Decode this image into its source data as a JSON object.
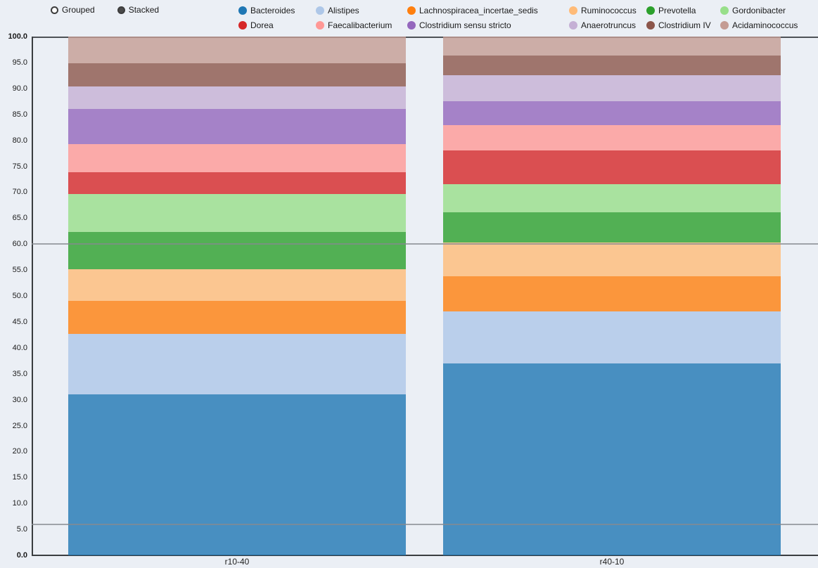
{
  "controls": {
    "mode_options": [
      {
        "label": "Grouped",
        "selected": false
      },
      {
        "label": "Stacked",
        "selected": true
      }
    ]
  },
  "chart_data": {
    "type": "bar",
    "stacked": true,
    "title": "",
    "xlabel": "",
    "ylabel": "",
    "categories": [
      "r10-40",
      "r40-10"
    ],
    "series": [
      {
        "name": "Bacteroides",
        "color": "#1f77b4",
        "values": [
          31.0,
          37.0
        ]
      },
      {
        "name": "Alistipes",
        "color": "#aec7e8",
        "values": [
          11.7,
          10.0
        ]
      },
      {
        "name": "Lachnospiracea_incertae_sedis",
        "color": "#ff7f0e",
        "values": [
          6.4,
          6.8
        ]
      },
      {
        "name": "Ruminococcus",
        "color": "#ffbb78",
        "values": [
          6.1,
          6.5
        ]
      },
      {
        "name": "Prevotella",
        "color": "#2ca02c",
        "values": [
          7.2,
          5.8
        ]
      },
      {
        "name": "Gordonibacter",
        "color": "#98df8a",
        "values": [
          7.2,
          5.4
        ]
      },
      {
        "name": "Dorea",
        "color": "#d62728",
        "values": [
          4.3,
          6.6
        ]
      },
      {
        "name": "Faecalibacterium",
        "color": "#ff9896",
        "values": [
          5.4,
          4.9
        ]
      },
      {
        "name": "Clostridium sensu stricto",
        "color": "#9467bd",
        "values": [
          6.8,
          4.6
        ]
      },
      {
        "name": "Anaerotruncus",
        "color": "#c5b0d5",
        "values": [
          4.3,
          4.9
        ]
      },
      {
        "name": "Clostridium IV",
        "color": "#8c564b",
        "values": [
          4.5,
          3.9
        ]
      },
      {
        "name": "Acidaminococcus",
        "color": "#c49c94",
        "values": [
          5.1,
          3.6
        ]
      }
    ],
    "ylim": [
      0,
      100
    ],
    "ytick_step": 5,
    "ytick_labels": [
      "0.0",
      "5.0",
      "10.0",
      "15.0",
      "20.0",
      "25.0",
      "30.0",
      "35.0",
      "40.0",
      "45.0",
      "50.0",
      "55.0",
      "60.0",
      "65.0",
      "70.0",
      "75.0",
      "80.0",
      "85.0",
      "90.0",
      "95.0",
      "100.0"
    ],
    "reference_lines": [
      60.0,
      6.0
    ],
    "grid": false,
    "legend_position": "top",
    "bar_opacity": 0.8
  }
}
